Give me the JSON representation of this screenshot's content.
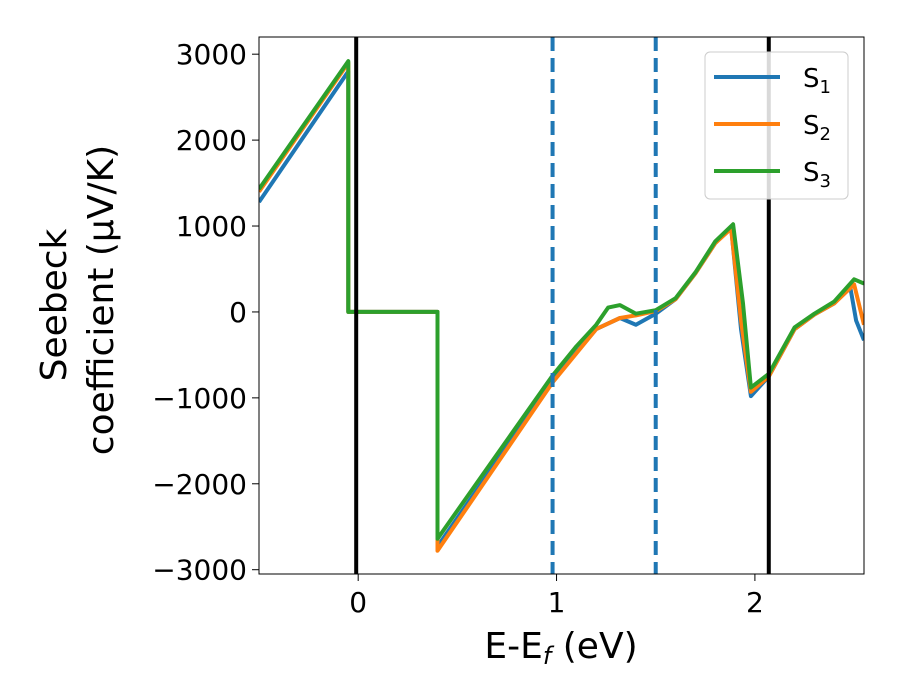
{
  "chart_data": {
    "type": "line",
    "xlabel": "E-E",
    "xlabel_sub": "f",
    "xlabel_unit": " (eV)",
    "ylabel_line1": "Seebeck",
    "ylabel_line2": "coefficient  (μV/K)",
    "xlim": [
      -0.5,
      2.55
    ],
    "ylim": [
      -3050,
      3200
    ],
    "xticks": [
      0,
      1,
      2
    ],
    "xtick_labels": [
      "0",
      "1",
      "2"
    ],
    "yticks": [
      3000,
      2000,
      1000,
      0,
      -1000,
      -2000,
      -3000
    ],
    "ytick_labels": [
      "3000",
      "2000",
      "1000",
      "0",
      "−1000",
      "−2000",
      "−3000"
    ],
    "grid": false,
    "legend_position": "top-right",
    "vlines": [
      {
        "x": -0.01,
        "style": "solid",
        "color": "#000000"
      },
      {
        "x": 2.07,
        "style": "solid",
        "color": "#000000"
      },
      {
        "x": 0.98,
        "style": "dashed",
        "color": "#1f77b4"
      },
      {
        "x": 1.5,
        "style": "dashed",
        "color": "#1f77b4"
      }
    ],
    "series": [
      {
        "name": "S",
        "name_sub": "1",
        "color": "#1f77b4",
        "x": [
          -0.5,
          -0.05,
          -0.05,
          0.4,
          0.4,
          0.98,
          1.2,
          1.32,
          1.4,
          1.5,
          1.6,
          1.7,
          1.8,
          1.88,
          1.93,
          1.98,
          2.07,
          2.2,
          2.3,
          2.4,
          2.48,
          2.51,
          2.55
        ],
        "y": [
          1280,
          2800,
          0,
          0,
          -2730,
          -800,
          -200,
          -70,
          -150,
          -20,
          150,
          450,
          800,
          990,
          -200,
          -980,
          -750,
          -200,
          -30,
          100,
          300,
          -100,
          -330
        ]
      },
      {
        "name": "S",
        "name_sub": "2",
        "color": "#ff7f0e",
        "x": [
          -0.5,
          -0.05,
          -0.05,
          0.4,
          0.4,
          0.98,
          1.2,
          1.32,
          1.4,
          1.5,
          1.6,
          1.7,
          1.8,
          1.88,
          1.93,
          1.98,
          2.07,
          2.2,
          2.3,
          2.4,
          2.5,
          2.55
        ],
        "y": [
          1400,
          2900,
          0,
          0,
          -2780,
          -820,
          -200,
          -70,
          -40,
          10,
          150,
          450,
          800,
          970,
          -100,
          -930,
          -750,
          -200,
          -30,
          100,
          320,
          -150
        ]
      },
      {
        "name": "S",
        "name_sub": "3",
        "color": "#2ca02c",
        "x": [
          -0.5,
          -0.05,
          -0.05,
          0.4,
          0.4,
          0.98,
          1.1,
          1.2,
          1.26,
          1.32,
          1.4,
          1.5,
          1.6,
          1.7,
          1.8,
          1.89,
          1.94,
          1.98,
          2.07,
          2.2,
          2.3,
          2.4,
          2.5,
          2.55
        ],
        "y": [
          1430,
          2920,
          0,
          0,
          -2640,
          -740,
          -400,
          -150,
          50,
          80,
          -20,
          20,
          160,
          460,
          820,
          1020,
          100,
          -880,
          -720,
          -180,
          -20,
          120,
          380,
          330
        ]
      }
    ]
  }
}
